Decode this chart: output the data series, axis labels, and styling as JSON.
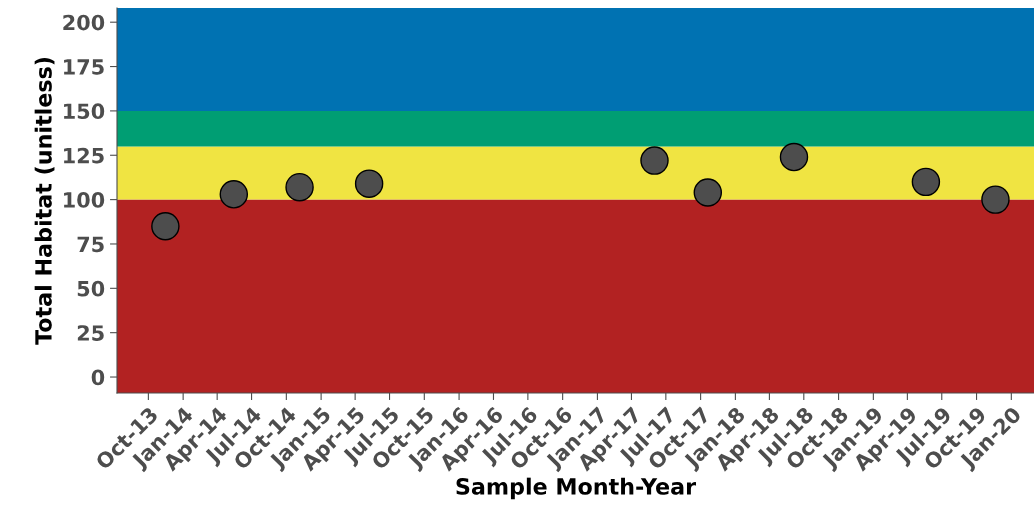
{
  "chart_data": {
    "type": "scatter",
    "xlabel": "Sample Month-Year",
    "ylabel": "Total Habitat (unitless)",
    "x": [
      "2013-11-15",
      "2014-05-15",
      "2014-11-05",
      "2015-05-08",
      "2017-06-01",
      "2017-10-20",
      "2018-06-05",
      "2019-05-20",
      "2019-11-20"
    ],
    "values": [
      85,
      103,
      107,
      109,
      122,
      104,
      124,
      110,
      100
    ],
    "color": "#4d4d4d",
    "marker": "circle",
    "grid": false,
    "xlim": [
      "2013-07-10",
      "2020-03-01"
    ],
    "ylim": [
      -9,
      208
    ],
    "yticks": [
      0,
      25,
      50,
      75,
      100,
      125,
      150,
      175,
      200
    ],
    "xticks": [
      {
        "value": "2013-10-01",
        "label": "Oct-13"
      },
      {
        "value": "2014-01-01",
        "label": "Jan-14"
      },
      {
        "value": "2014-04-01",
        "label": "Apr-14"
      },
      {
        "value": "2014-07-01",
        "label": "Jul-14"
      },
      {
        "value": "2014-10-01",
        "label": "Oct-14"
      },
      {
        "value": "2015-01-01",
        "label": "Jan-15"
      },
      {
        "value": "2015-04-01",
        "label": "Apr-15"
      },
      {
        "value": "2015-07-01",
        "label": "Jul-15"
      },
      {
        "value": "2015-10-01",
        "label": "Oct-15"
      },
      {
        "value": "2016-01-01",
        "label": "Jan-16"
      },
      {
        "value": "2016-04-01",
        "label": "Apr-16"
      },
      {
        "value": "2016-07-01",
        "label": "Jul-16"
      },
      {
        "value": "2016-10-01",
        "label": "Oct-16"
      },
      {
        "value": "2017-01-01",
        "label": "Jan-17"
      },
      {
        "value": "2017-04-01",
        "label": "Apr-17"
      },
      {
        "value": "2017-07-01",
        "label": "Jul-17"
      },
      {
        "value": "2017-10-01",
        "label": "Oct-17"
      },
      {
        "value": "2018-01-01",
        "label": "Jan-18"
      },
      {
        "value": "2018-04-01",
        "label": "Apr-18"
      },
      {
        "value": "2018-07-01",
        "label": "Jul-18"
      },
      {
        "value": "2018-10-01",
        "label": "Oct-18"
      },
      {
        "value": "2019-01-01",
        "label": "Jan-19"
      },
      {
        "value": "2019-04-01",
        "label": "Apr-19"
      },
      {
        "value": "2019-07-01",
        "label": "Jul-19"
      },
      {
        "value": "2019-10-01",
        "label": "Oct-19"
      },
      {
        "value": "2020-01-01",
        "label": "Jan-20"
      }
    ],
    "bands": [
      {
        "axis": "y",
        "from": -9,
        "to": 100,
        "color": "#b22222"
      },
      {
        "axis": "y",
        "from": 100,
        "to": 130,
        "color": "#f0e442"
      },
      {
        "axis": "y",
        "from": 130,
        "to": 150,
        "color": "#009e73"
      },
      {
        "axis": "y",
        "from": 150,
        "to": 208,
        "color": "#0072b2"
      }
    ]
  }
}
